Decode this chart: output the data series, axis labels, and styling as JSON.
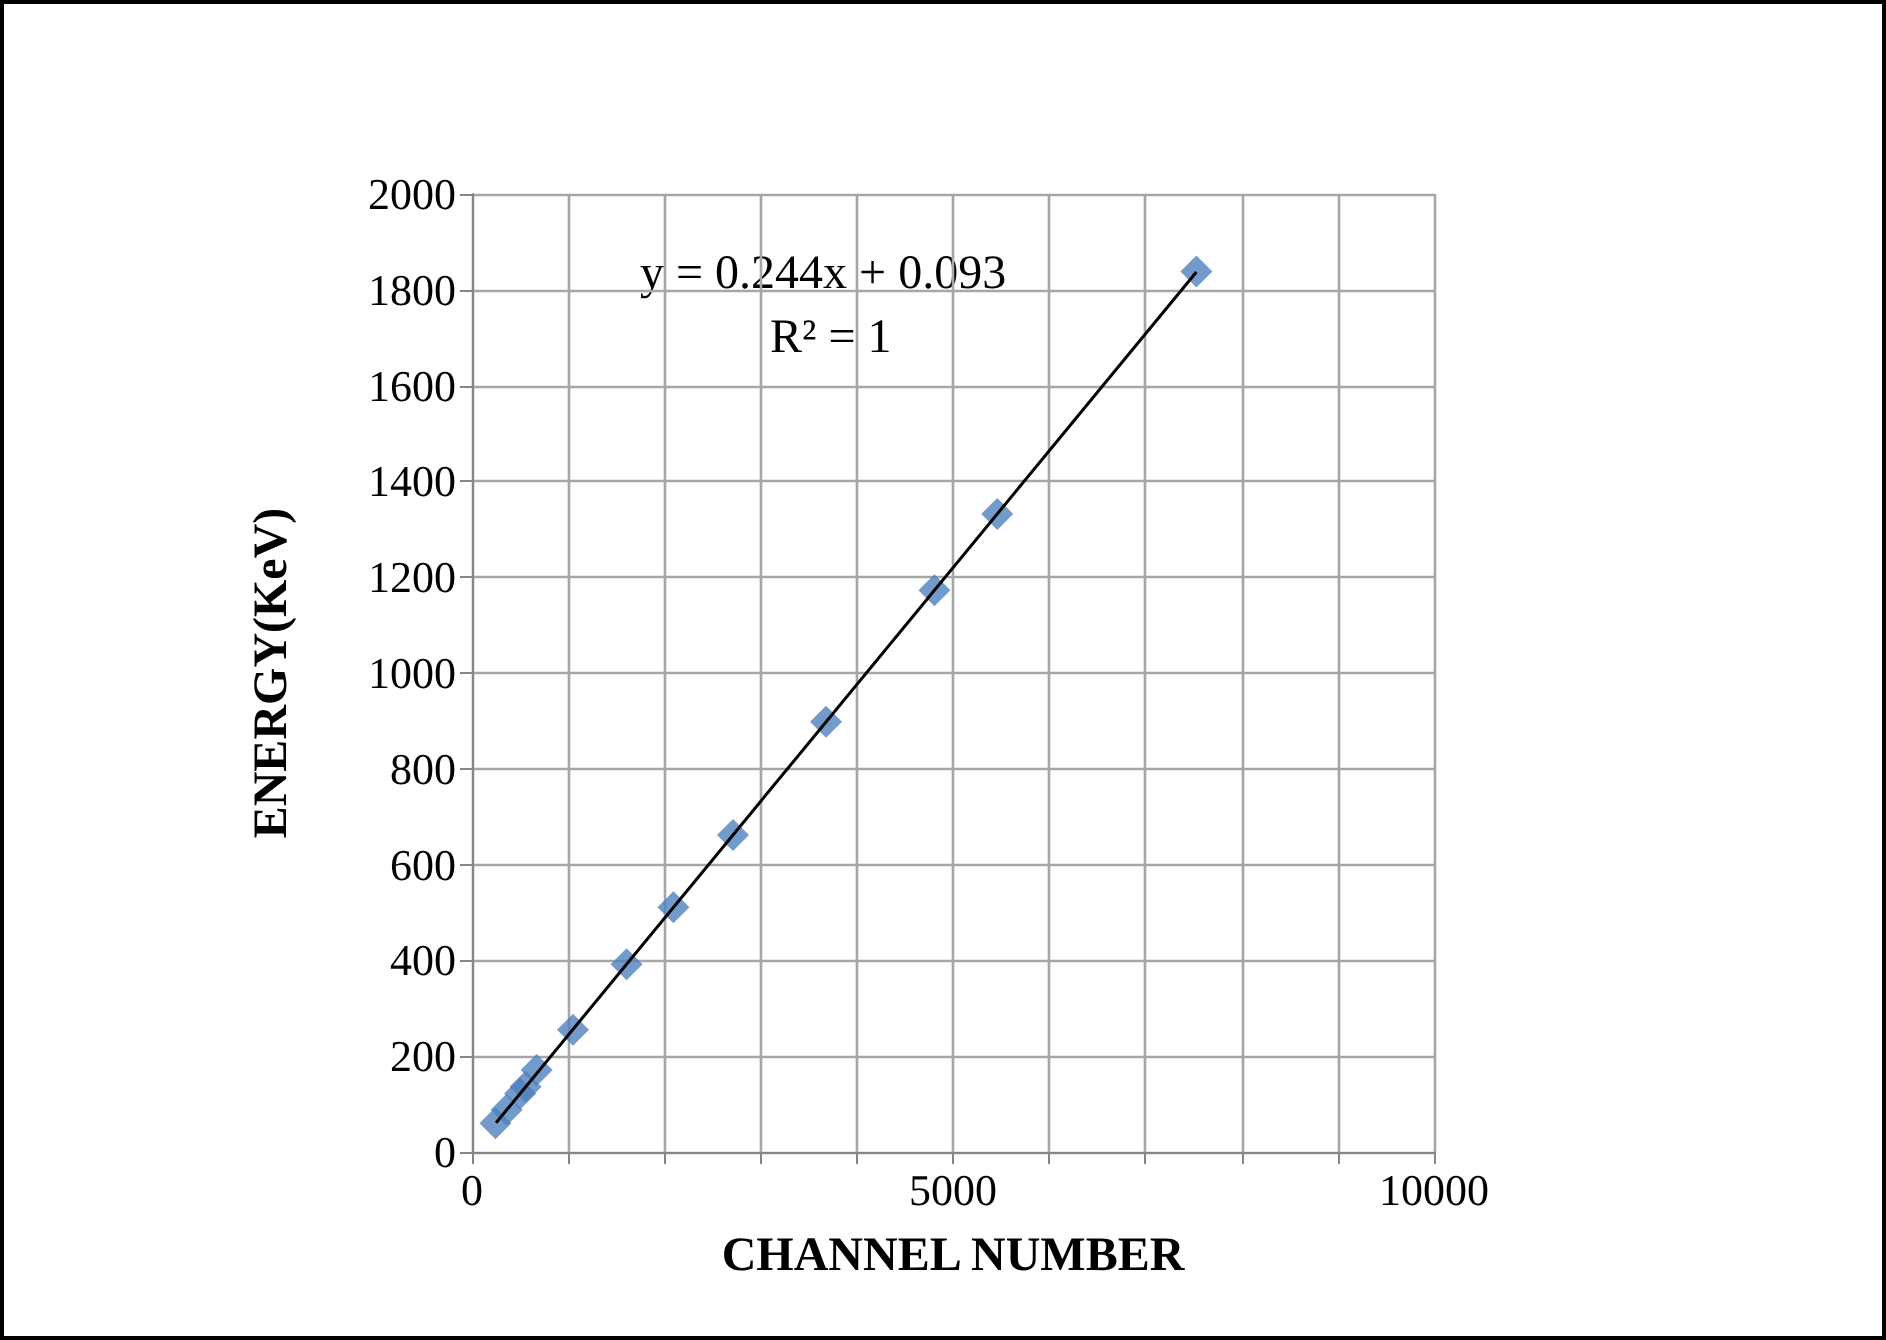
{
  "chart_data": {
    "type": "scatter",
    "xlabel": "CHANNEL NUMBER",
    "ylabel": "ENERGY(KeV)",
    "annotations": [
      "y = 0.244x + 0.093",
      "R² = 1"
    ],
    "xlim": [
      0,
      10000
    ],
    "xticks": [
      0,
      {
        "value": 1000,
        "label": null
      },
      {
        "value": 2000,
        "label": null
      },
      {
        "value": 3000,
        "label": null
      },
      {
        "value": 4000,
        "label": null
      },
      5000,
      {
        "value": 6000,
        "label": null
      },
      {
        "value": 7000,
        "label": null
      },
      {
        "value": 8000,
        "label": null
      },
      {
        "value": 9000,
        "label": null
      },
      10000
    ],
    "ylim": [
      0,
      2000
    ],
    "yticks": [
      0,
      200,
      400,
      600,
      800,
      1000,
      1200,
      1400,
      1600,
      1800,
      2000
    ],
    "grid": true,
    "series": [
      {
        "marker": "diamond",
        "color": "#4f81bd",
        "x": [
          244,
          360,
          500,
          557,
          672,
          1050,
          1607,
          2094,
          2713,
          3680,
          4807,
          5460,
          7530
        ],
        "values": [
          60,
          88,
          122,
          136,
          171,
          255,
          392,
          511,
          662,
          898,
          1173,
          1332,
          1838
        ]
      },
      {
        "type": "line",
        "marker": "none",
        "color": "#000000",
        "line_style": "solid",
        "x": [
          250,
          7530
        ],
        "values": [
          61,
          1837
        ]
      }
    ]
  }
}
